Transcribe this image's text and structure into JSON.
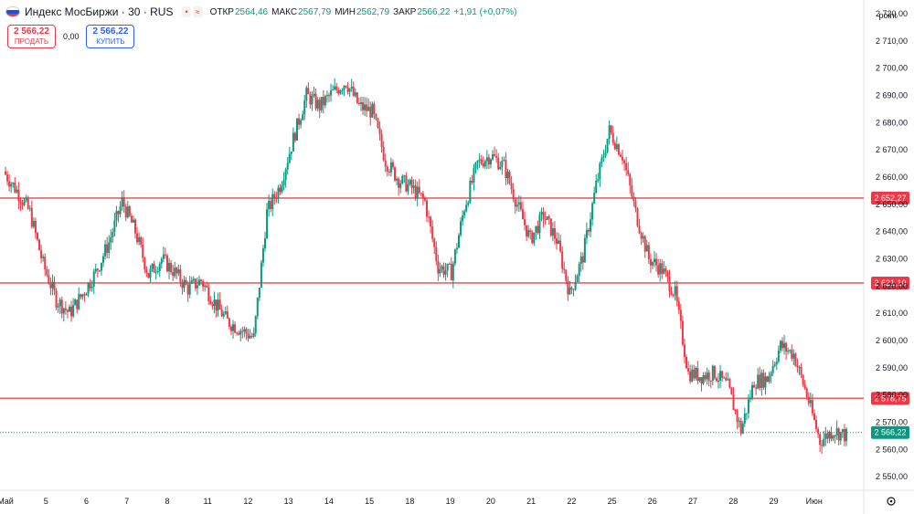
{
  "header": {
    "title": "Индекс МосБиржи · 30 · RUS",
    "ohlc": [
      {
        "key": "ОТКР",
        "value": "2564,46"
      },
      {
        "key": "МАКС",
        "value": "2567,79"
      },
      {
        "key": "МИН",
        "value": "2562,79"
      },
      {
        "key": "ЗАКР",
        "value": "2566,22"
      }
    ],
    "change": "+1,91 (+0,07%)",
    "flag_colors": [
      "#ffffff",
      "#1e4fd6",
      "#e53935"
    ]
  },
  "trade": {
    "sell_price": "2 566,22",
    "sell_label": "ПРОДАТЬ",
    "spread": "0,00",
    "buy_price": "2 566,22",
    "buy_label": "КУПИТЬ"
  },
  "axis_unit": "point",
  "settings_icon": "gear-icon",
  "colors": {
    "up": "#089981",
    "down": "#f23645",
    "hline": "#e06666",
    "price_line": "#089981"
  },
  "chart_data": {
    "type": "candlestick",
    "ylim": [
      2545,
      2725
    ],
    "y_ticks": [
      2550,
      2560,
      2570,
      2580,
      2590,
      2600,
      2610,
      2620,
      2630,
      2640,
      2650,
      2660,
      2670,
      2680,
      2690,
      2700,
      2710,
      2720
    ],
    "y_tick_labels": [
      "2 550,00",
      "2 560,00",
      "2 570,00",
      "2 580,00",
      "2 590,00",
      "2 600,00",
      "2 610,00",
      "2 620,00",
      "2 630,00",
      "2 640,00",
      "2 650,00",
      "2 660,00",
      "2 670,00",
      "2 680,00",
      "2 690,00",
      "2 700,00",
      "2 710,00",
      "2 720,00"
    ],
    "x_labels": [
      "Май",
      "5",
      "6",
      "7",
      "8",
      "11",
      "12",
      "13",
      "14",
      "15",
      "18",
      "19",
      "20",
      "21",
      "22",
      "25",
      "26",
      "27",
      "28",
      "29",
      "Июн"
    ],
    "horizontal_lines": [
      {
        "value": 2652.27,
        "label": "2 652,27"
      },
      {
        "value": 2621.1,
        "label": "2 621,10"
      },
      {
        "value": 2578.75,
        "label": "2 578,75"
      }
    ],
    "last_price": {
      "value": 2566.22,
      "label": "2 566,22"
    },
    "trend_points": [
      [
        0,
        2662
      ],
      [
        1,
        2655
      ],
      [
        2,
        2647
      ],
      [
        3,
        2628
      ],
      [
        4,
        2615
      ],
      [
        5,
        2610
      ],
      [
        6,
        2617
      ],
      [
        7,
        2625
      ],
      [
        8,
        2636
      ],
      [
        9,
        2651
      ],
      [
        10,
        2640
      ],
      [
        11,
        2624
      ],
      [
        12,
        2630
      ],
      [
        13,
        2625
      ],
      [
        14,
        2619
      ],
      [
        15,
        2622
      ],
      [
        16,
        2614
      ],
      [
        17,
        2607
      ],
      [
        18,
        2604
      ],
      [
        19,
        2601
      ],
      [
        20,
        2647
      ],
      [
        21,
        2657
      ],
      [
        22,
        2674
      ],
      [
        23,
        2690
      ],
      [
        24,
        2686
      ],
      [
        25,
        2691
      ],
      [
        26,
        2695
      ],
      [
        27,
        2686
      ],
      [
        28,
        2684
      ],
      [
        29,
        2666
      ],
      [
        30,
        2659
      ],
      [
        31,
        2656
      ],
      [
        32,
        2651
      ],
      [
        33,
        2627
      ],
      [
        34,
        2625
      ],
      [
        35,
        2649
      ],
      [
        36,
        2665
      ],
      [
        37,
        2668
      ],
      [
        38,
        2664
      ],
      [
        39,
        2650
      ],
      [
        40,
        2637
      ],
      [
        41,
        2646
      ],
      [
        42,
        2637
      ],
      [
        43,
        2617
      ],
      [
        44,
        2631
      ],
      [
        45,
        2657
      ],
      [
        46,
        2677
      ],
      [
        47,
        2668
      ],
      [
        48,
        2647
      ],
      [
        49,
        2630
      ],
      [
        50,
        2626
      ],
      [
        51,
        2617
      ],
      [
        52,
        2588
      ],
      [
        53,
        2587
      ],
      [
        54,
        2588
      ],
      [
        55,
        2583
      ],
      [
        56,
        2567
      ],
      [
        57,
        2585
      ],
      [
        58,
        2586
      ],
      [
        59,
        2598
      ],
      [
        60,
        2595
      ],
      [
        61,
        2580
      ],
      [
        62,
        2563
      ],
      [
        63,
        2567
      ],
      [
        64,
        2565
      ]
    ],
    "x_label_positions": [
      0,
      4,
      8,
      12,
      16,
      20,
      24,
      28,
      32,
      36,
      40,
      44,
      48,
      52,
      56,
      60,
      64,
      68,
      72,
      76,
      80
    ]
  }
}
